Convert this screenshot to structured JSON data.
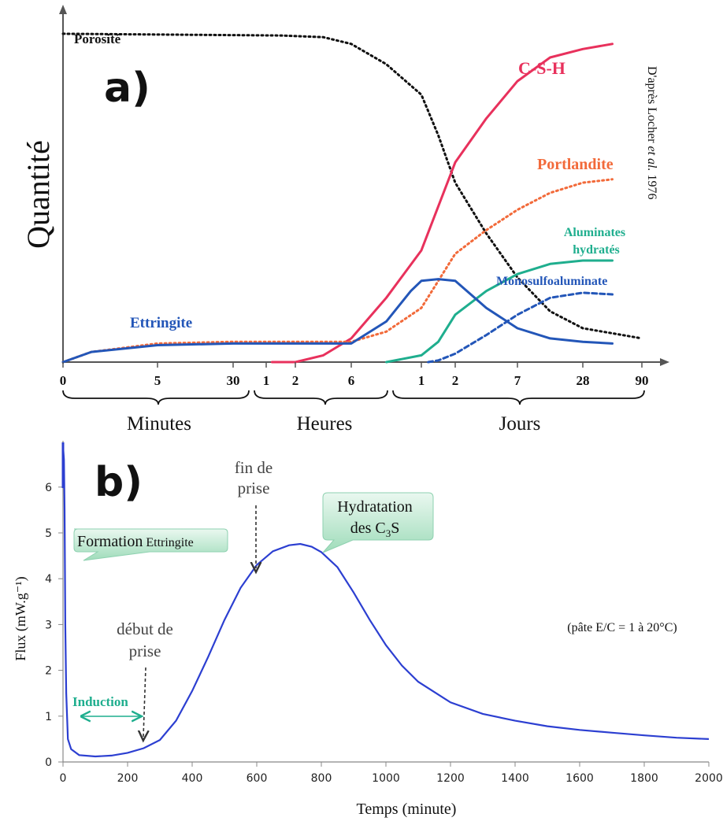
{
  "chart_data": [
    {
      "panel_label": "a)",
      "type": "line",
      "ylabel": "Quantité",
      "source_note": {
        "prefix": "D'après Locher ",
        "italic": "et al.",
        "suffix": " 1976"
      },
      "x_ticks": [
        "0",
        "5",
        "30",
        "1",
        "2",
        "6",
        "1",
        "2",
        "7",
        "28",
        "90"
      ],
      "x_groups": [
        "Minutes",
        "Heures",
        "Jours"
      ],
      "series": [
        {
          "name": "Porosité",
          "style": "dotted",
          "color": "#111111",
          "points": [
            [
              0,
              97
            ],
            [
              3.5,
              96.5
            ],
            [
              4.5,
              96
            ],
            [
              5,
              94
            ],
            [
              5.5,
              88
            ],
            [
              6,
              79
            ],
            [
              6.5,
              67
            ],
            [
              7,
              53
            ],
            [
              7.5,
              38
            ],
            [
              8,
              25
            ],
            [
              8.5,
              15
            ],
            [
              9,
              10
            ],
            [
              9.5,
              8.5
            ],
            [
              10,
              7
            ]
          ]
        },
        {
          "name": "C-S-H",
          "style": "solid",
          "color": "#e8315c",
          "points": [
            [
              3.2,
              0
            ],
            [
              4,
              0
            ],
            [
              4.5,
              2
            ],
            [
              5,
              7
            ],
            [
              5.5,
              19
            ],
            [
              6,
              33
            ],
            [
              6.5,
              46
            ],
            [
              7,
              59
            ],
            [
              7.5,
              72
            ],
            [
              8,
              83
            ],
            [
              8.5,
              90
            ],
            [
              9,
              92.5
            ],
            [
              9.5,
              94
            ]
          ]
        },
        {
          "name": "Portlandite",
          "style": "dotted",
          "color": "#f26a3a",
          "points": [
            [
              0,
              0
            ],
            [
              0.3,
              3
            ],
            [
              1,
              5.5
            ],
            [
              2,
              6
            ],
            [
              3,
              6
            ],
            [
              4,
              6
            ],
            [
              5,
              6
            ],
            [
              5.5,
              9
            ],
            [
              6,
              16
            ],
            [
              6.5,
              24
            ],
            [
              7,
              32
            ],
            [
              7.5,
              39
            ],
            [
              8,
              45
            ],
            [
              8.5,
              50
            ],
            [
              9,
              53
            ],
            [
              9.5,
              54
            ]
          ]
        },
        {
          "name": "Aluminates hydratés",
          "style": "solid",
          "color": "#1fae8e",
          "points": [
            [
              5.5,
              0
            ],
            [
              6,
              2
            ],
            [
              6.5,
              6
            ],
            [
              7,
              14
            ],
            [
              7.5,
              21
            ],
            [
              8,
              26
            ],
            [
              8.5,
              29
            ],
            [
              9,
              30
            ],
            [
              9.5,
              30
            ]
          ]
        },
        {
          "name": "Monosulfoaluminate",
          "style": "dashed",
          "color": "#2356b8",
          "points": [
            [
              6.2,
              0
            ],
            [
              6.5,
              0.5
            ],
            [
              7,
              2.5
            ],
            [
              7.5,
              8
            ],
            [
              8,
              14
            ],
            [
              8.5,
              19
            ],
            [
              9,
              20.5
            ],
            [
              9.5,
              20
            ]
          ]
        },
        {
          "name": "Ettringite",
          "style": "solid",
          "color": "#2356b8",
          "points": [
            [
              0,
              0
            ],
            [
              0.3,
              3
            ],
            [
              1,
              5
            ],
            [
              2,
              5.5
            ],
            [
              3,
              5.5
            ],
            [
              4,
              5.5
            ],
            [
              5,
              5.5
            ],
            [
              5.5,
              12
            ],
            [
              5.85,
              21
            ],
            [
              6,
              24
            ],
            [
              6.5,
              24.5
            ],
            [
              7,
              24
            ],
            [
              7.5,
              16
            ],
            [
              8,
              10
            ],
            [
              8.5,
              7
            ],
            [
              9,
              6
            ],
            [
              9.5,
              5.5
            ]
          ]
        }
      ]
    },
    {
      "panel_label": "b)",
      "type": "line",
      "xlabel": "Temps (minute)",
      "ylabel": "Flux (mW.g⁻¹)",
      "xlim": [
        0,
        2000
      ],
      "ylim": [
        0,
        7
      ],
      "x_ticks": [
        0,
        200,
        400,
        600,
        800,
        1000,
        1200,
        1400,
        1600,
        1800,
        2000
      ],
      "y_ticks": [
        0,
        1,
        2,
        3,
        4,
        5,
        6
      ],
      "series": [
        {
          "name": "Flux",
          "color": "#2c3fd1",
          "points": [
            [
              0,
              6.9
            ],
            [
              3,
              6.6
            ],
            [
              5,
              5.5
            ],
            [
              7,
              3.0
            ],
            [
              10,
              1.5
            ],
            [
              15,
              0.5
            ],
            [
              25,
              0.28
            ],
            [
              50,
              0.15
            ],
            [
              100,
              0.12
            ],
            [
              150,
              0.14
            ],
            [
              200,
              0.2
            ],
            [
              250,
              0.3
            ],
            [
              300,
              0.48
            ],
            [
              350,
              0.9
            ],
            [
              400,
              1.55
            ],
            [
              450,
              2.3
            ],
            [
              500,
              3.1
            ],
            [
              550,
              3.8
            ],
            [
              600,
              4.3
            ],
            [
              650,
              4.6
            ],
            [
              700,
              4.73
            ],
            [
              735,
              4.76
            ],
            [
              770,
              4.7
            ],
            [
              800,
              4.58
            ],
            [
              850,
              4.25
            ],
            [
              900,
              3.7
            ],
            [
              950,
              3.1
            ],
            [
              1000,
              2.55
            ],
            [
              1050,
              2.1
            ],
            [
              1100,
              1.75
            ],
            [
              1200,
              1.3
            ],
            [
              1300,
              1.05
            ],
            [
              1400,
              0.9
            ],
            [
              1500,
              0.78
            ],
            [
              1600,
              0.7
            ],
            [
              1700,
              0.64
            ],
            [
              1800,
              0.58
            ],
            [
              1900,
              0.53
            ],
            [
              2000,
              0.5
            ]
          ]
        }
      ],
      "annotations": {
        "formation": {
          "main": "Formation",
          "small": "Ettringite"
        },
        "hydratation": {
          "line1": "Hydratation",
          "line2_pre": "des C",
          "sub": "3",
          "line2_post": "S"
        },
        "fin_de_prise": {
          "line1": "fin de",
          "line2": "prise"
        },
        "debut_de_prise": {
          "line1": "début de",
          "line2": "prise"
        },
        "induction": "Induction",
        "conditions": "(pâte E/C = 1 à 20°C)"
      }
    }
  ]
}
